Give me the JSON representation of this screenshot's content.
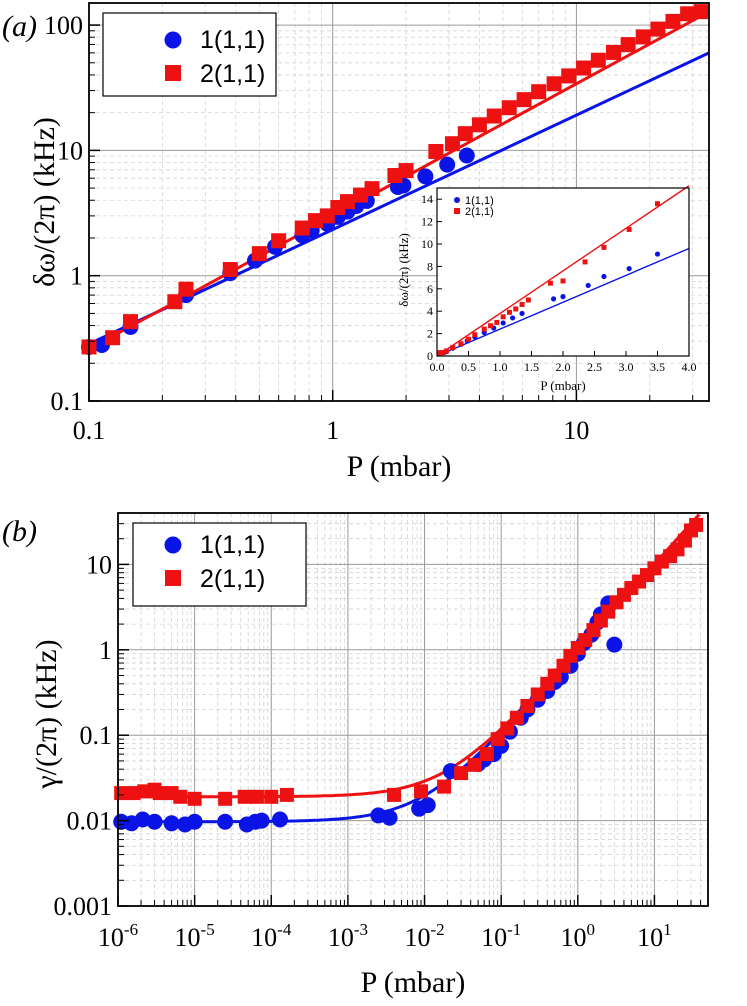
{
  "chart_data": [
    {
      "type": "scatter",
      "panel_label": "(a)",
      "xlabel": "P (mbar)",
      "ylabel": "δω/(2π) (kHz)",
      "xscale": "log",
      "yscale": "log",
      "xlim": [
        0.1,
        35
      ],
      "ylim": [
        0.1,
        150
      ],
      "xticks": [
        0.1,
        1,
        10
      ],
      "xtick_labels": [
        "0.1",
        "1",
        "10"
      ],
      "yticks": [
        0.1,
        1,
        10,
        100
      ],
      "ytick_labels": [
        "0.1",
        "1",
        "10",
        "100"
      ],
      "grid": true,
      "legend_position": "top-left",
      "colors": {
        "series1": "#0a14e6",
        "series2": "#ee1111"
      },
      "series": [
        {
          "name": "1(1,1)",
          "marker": "circle",
          "color": "#0a14e6",
          "x": [
            0.1,
            0.113,
            0.148,
            0.25,
            0.38,
            0.48,
            0.58,
            0.75,
            0.82,
            0.95,
            1.05,
            1.15,
            1.25,
            1.38,
            1.85,
            1.95,
            2.4,
            2.95,
            3.55
          ],
          "y": [
            0.27,
            0.28,
            0.39,
            0.7,
            1.05,
            1.32,
            1.7,
            2.1,
            2.3,
            2.6,
            2.95,
            3.25,
            3.6,
            3.95,
            5.1,
            5.25,
            6.2,
            7.7,
            9.1
          ]
        },
        {
          "name": "2(1,1)",
          "marker": "square",
          "color": "#ee1111",
          "x": [
            0.1,
            0.125,
            0.148,
            0.225,
            0.25,
            0.38,
            0.5,
            0.6,
            0.75,
            0.85,
            0.95,
            1.05,
            1.15,
            1.3,
            1.45,
            1.8,
            2.0,
            2.65,
            3.1,
            3.5,
            4.0,
            4.6,
            5.3,
            6.1,
            7.0,
            8.1,
            9.3,
            10.7,
            12.3,
            14.2,
            16.3,
            18.8,
            21.6,
            24.9,
            28.6,
            32.5
          ],
          "y": [
            0.27,
            0.32,
            0.43,
            0.62,
            0.78,
            1.12,
            1.5,
            1.9,
            2.4,
            2.75,
            3.0,
            3.5,
            3.9,
            4.4,
            4.95,
            6.3,
            6.9,
            9.8,
            11.3,
            13.6,
            16.0,
            18.8,
            21.9,
            25.4,
            29.4,
            34.0,
            39.3,
            45.4,
            52.4,
            60.5,
            69.8,
            80.5,
            92.9,
            107,
            123,
            128
          ]
        }
      ],
      "fits": [
        {
          "series": "1(1,1)",
          "x": [
            0.1,
            35
          ],
          "y": [
            0.285,
            60
          ]
        },
        {
          "series": "2(1,1)",
          "x": [
            0.1,
            35
          ],
          "y": [
            0.26,
            128
          ]
        }
      ],
      "inset": {
        "type": "scatter",
        "xlabel": "P (mbar)",
        "ylabel": "δω/(2π) (kHz)",
        "xlim": [
          0.0,
          4.0
        ],
        "ylim": [
          0,
          15
        ],
        "xticks": [
          0.0,
          0.5,
          1.0,
          1.5,
          2.0,
          2.5,
          3.0,
          3.5,
          4.0
        ],
        "xtick_labels": [
          "0.0",
          "0.5",
          "1.0",
          "1.5",
          "2.0",
          "2.5",
          "3.0",
          "3.5",
          "4.0"
        ],
        "yticks": [
          0,
          2,
          4,
          6,
          8,
          10,
          12,
          14
        ],
        "ytick_labels": [
          "0",
          "2",
          "4",
          "6",
          "8",
          "10",
          "12",
          "14"
        ],
        "legend_position": "top-left",
        "series": [
          {
            "name": "1(1,1)",
            "marker": "circle",
            "color": "#0a14e6",
            "x": [
              0.05,
              0.1,
              0.15,
              0.25,
              0.38,
              0.48,
              0.6,
              0.75,
              0.9,
              1.05,
              1.2,
              1.35,
              1.85,
              2.0,
              2.4,
              2.65,
              3.05,
              3.5
            ],
            "y": [
              0.3,
              0.3,
              0.4,
              0.7,
              1.05,
              1.35,
              1.7,
              2.1,
              2.5,
              2.95,
              3.4,
              3.8,
              5.1,
              5.3,
              6.3,
              7.1,
              7.8,
              9.1
            ]
          },
          {
            "name": "2(1,1)",
            "marker": "square",
            "color": "#ee1111",
            "x": [
              0.05,
              0.1,
              0.15,
              0.25,
              0.38,
              0.5,
              0.6,
              0.75,
              0.85,
              0.95,
              1.05,
              1.15,
              1.25,
              1.35,
              1.45,
              1.8,
              2.0,
              2.35,
              2.65,
              3.05,
              3.5
            ],
            "y": [
              0.3,
              0.3,
              0.45,
              0.75,
              1.1,
              1.5,
              1.9,
              2.4,
              2.7,
              3.0,
              3.5,
              3.9,
              4.2,
              4.6,
              5.0,
              6.5,
              6.7,
              8.4,
              9.7,
              11.3,
              13.6
            ]
          }
        ],
        "fits": [
          {
            "series": "1(1,1)",
            "x": [
              0,
              4.0
            ],
            "y": [
              0,
              9.6
            ]
          },
          {
            "series": "2(1,1)",
            "x": [
              0,
              4.0
            ],
            "y": [
              0,
              15.2
            ]
          }
        ]
      }
    },
    {
      "type": "scatter",
      "panel_label": "(b)",
      "xlabel": "P (mbar)",
      "ylabel": "γ/(2π) (kHz)",
      "xscale": "log",
      "yscale": "log",
      "xlim": [
        1e-06,
        50
      ],
      "ylim": [
        0.001,
        40
      ],
      "xticks": [
        1e-06,
        1e-05,
        0.0001,
        0.001,
        0.01,
        0.1,
        1,
        10
      ],
      "xtick_labels": [
        {
          "base": "10",
          "exp": "-6"
        },
        {
          "base": "10",
          "exp": "-5"
        },
        {
          "base": "10",
          "exp": "-4"
        },
        {
          "base": "10",
          "exp": "-3"
        },
        {
          "base": "10",
          "exp": "-2"
        },
        {
          "base": "10",
          "exp": "-1"
        },
        {
          "base": "10",
          "exp": "0"
        },
        {
          "base": "10",
          "exp": "1"
        }
      ],
      "yticks": [
        0.001,
        0.01,
        0.1,
        1,
        10
      ],
      "ytick_labels": [
        "0.001",
        "0.01",
        "0.1",
        "1",
        "10"
      ],
      "grid": true,
      "legend_position": "top-left",
      "series": [
        {
          "name": "1(1,1)",
          "marker": "circle",
          "color": "#0a14e6",
          "x": [
            1.1e-06,
            1.5e-06,
            2.1e-06,
            3e-06,
            5e-06,
            7.5e-06,
            1e-05,
            2.5e-05,
            4.8e-05,
            6.2e-05,
            7.5e-05,
            0.00013,
            0.0025,
            0.0035,
            0.0085,
            0.011,
            0.022,
            0.05,
            0.06,
            0.08,
            0.1,
            0.13,
            0.18,
            0.22,
            0.3,
            0.4,
            0.5,
            0.6,
            0.8,
            1.0,
            1.2,
            1.5,
            1.8,
            2.0,
            2.5,
            3.0
          ],
          "y": [
            0.0097,
            0.0093,
            0.0103,
            0.0097,
            0.0093,
            0.009,
            0.0097,
            0.0097,
            0.009,
            0.0097,
            0.01,
            0.0103,
            0.0115,
            0.0108,
            0.0138,
            0.0152,
            0.038,
            0.046,
            0.052,
            0.06,
            0.075,
            0.11,
            0.16,
            0.2,
            0.26,
            0.33,
            0.42,
            0.48,
            0.65,
            0.9,
            1.2,
            1.5,
            2.1,
            2.6,
            3.5,
            1.15
          ]
        },
        {
          "name": "2(1,1)",
          "marker": "square",
          "color": "#ee1111",
          "x": [
            1.1e-06,
            1.6e-06,
            2.2e-06,
            3e-06,
            3.5e-06,
            5e-06,
            6.5e-06,
            1e-05,
            2.5e-05,
            4.5e-05,
            6.5e-05,
            0.0001,
            0.00016,
            0.004,
            0.009,
            0.018,
            0.03,
            0.045,
            0.065,
            0.09,
            0.12,
            0.16,
            0.22,
            0.3,
            0.4,
            0.5,
            0.65,
            0.8,
            1.0,
            1.25,
            1.6,
            2.0,
            2.5,
            3.2,
            4.0,
            5.0,
            6.3,
            8.0,
            10,
            12.5,
            16,
            20,
            25,
            30,
            35
          ],
          "y": [
            0.021,
            0.021,
            0.022,
            0.023,
            0.021,
            0.021,
            0.019,
            0.018,
            0.018,
            0.019,
            0.019,
            0.019,
            0.02,
            0.02,
            0.022,
            0.025,
            0.036,
            0.045,
            0.06,
            0.09,
            0.12,
            0.16,
            0.22,
            0.3,
            0.4,
            0.5,
            0.65,
            0.85,
            1.05,
            1.3,
            1.7,
            2.2,
            2.8,
            3.6,
            4.4,
            5.3,
            6.3,
            7.5,
            9.0,
            10.8,
            12.5,
            15,
            19,
            25,
            29
          ]
        }
      ],
      "fits": [
        {
          "series": "1(1,1)",
          "baseline": 0.0097,
          "slope": 1.0,
          "coefficient": 1.0
        },
        {
          "series": "2(1,1)",
          "baseline": 0.019,
          "slope": 1.0,
          "coefficient": 1.0
        }
      ]
    }
  ]
}
